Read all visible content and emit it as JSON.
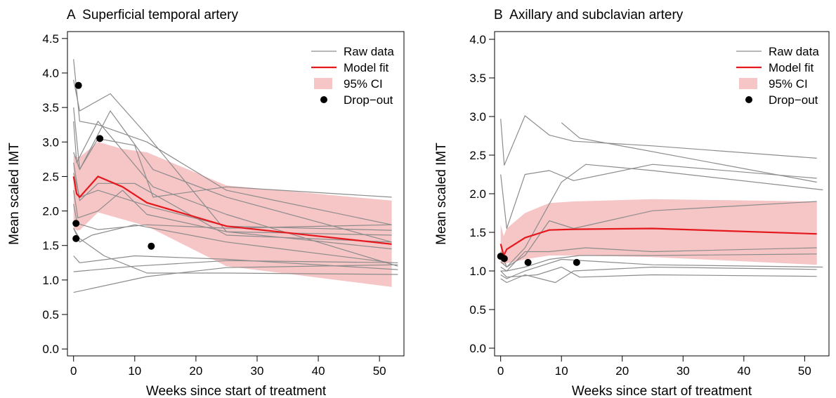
{
  "chart_data": [
    {
      "type": "line",
      "title": "A  Superficial temporal artery",
      "xlabel": "Weeks since start of treatment",
      "ylabel": "Mean scaled IMT",
      "xlim": [
        -1,
        54
      ],
      "ylim": [
        -0.1,
        4.6
      ],
      "xticks": [
        0,
        10,
        20,
        30,
        40,
        50
      ],
      "yticks": [
        0.0,
        0.5,
        1.0,
        1.5,
        2.0,
        2.5,
        3.0,
        3.5,
        4.0,
        4.5
      ],
      "legend": {
        "position": "top-right",
        "entries": [
          "Raw data",
          "Model fit",
          "95% CI",
          "Drop−out"
        ]
      },
      "raw_data": [
        [
          [
            0,
            4.2
          ],
          [
            1,
            3.3
          ],
          [
            4,
            3.25
          ],
          [
            12,
            3.0
          ],
          [
            25,
            2.3
          ],
          [
            52,
            1.8
          ]
        ],
        [
          [
            0,
            3.9
          ],
          [
            1,
            3.45
          ],
          [
            6,
            3.7
          ],
          [
            12,
            3.1
          ],
          [
            25,
            1.7
          ],
          [
            52,
            1.65
          ]
        ],
        [
          [
            0,
            3.5
          ],
          [
            1,
            2.6
          ],
          [
            6,
            3.45
          ],
          [
            13,
            2.6
          ],
          [
            25,
            2.2
          ],
          [
            52,
            1.55
          ]
        ],
        [
          [
            0,
            3.3
          ],
          [
            0.5,
            2.7
          ],
          [
            4,
            3.3
          ],
          [
            13,
            2.35
          ],
          [
            25,
            1.95
          ],
          [
            53,
            1.2
          ]
        ],
        [
          [
            0,
            2.85
          ],
          [
            1,
            2.6
          ],
          [
            4,
            3.05
          ],
          [
            10,
            2.95
          ],
          [
            13,
            2.2
          ],
          [
            25,
            2.35
          ],
          [
            52,
            2.2
          ]
        ],
        [
          [
            0,
            2.55
          ],
          [
            1,
            2.2
          ],
          [
            4,
            2.3
          ],
          [
            13,
            2.05
          ],
          [
            25,
            1.78
          ],
          [
            52,
            1.72
          ]
        ],
        [
          [
            0,
            2.7
          ],
          [
            1,
            2.15
          ],
          [
            4,
            2.4
          ],
          [
            10,
            2.4
          ],
          [
            25,
            1.65
          ],
          [
            52,
            1.55
          ]
        ],
        [
          [
            0,
            2.3
          ],
          [
            0.7,
            1.9
          ],
          [
            4,
            2.0
          ],
          [
            8,
            2.3
          ],
          [
            12,
            1.95
          ],
          [
            25,
            1.7
          ],
          [
            52,
            1.45
          ]
        ],
        [
          [
            0,
            2.1
          ],
          [
            0.6,
            1.82
          ],
          [
            4,
            1.73
          ],
          [
            12,
            1.8
          ],
          [
            25,
            1.75
          ],
          [
            52,
            1.8
          ]
        ],
        [
          [
            0,
            1.75
          ],
          [
            1,
            1.55
          ],
          [
            3,
            1.65
          ],
          [
            10,
            1.8
          ],
          [
            25,
            1.55
          ],
          [
            52,
            1.25
          ]
        ],
        [
          [
            0,
            1.75
          ],
          [
            1,
            1.6
          ],
          [
            5,
            1.35
          ],
          [
            12,
            1.1
          ],
          [
            25,
            1.1
          ],
          [
            53,
            1.08
          ]
        ],
        [
          [
            0,
            1.35
          ],
          [
            1,
            1.25
          ],
          [
            10,
            1.35
          ],
          [
            25,
            1.3
          ],
          [
            53,
            1.15
          ]
        ],
        [
          [
            0,
            1.12
          ],
          [
            10,
            1.2
          ],
          [
            25,
            1.28
          ],
          [
            53,
            1.25
          ]
        ],
        [
          [
            0,
            0.82
          ],
          [
            12,
            1.05
          ],
          [
            25,
            1.18
          ],
          [
            53,
            1.22
          ]
        ]
      ],
      "model_fit": {
        "x": [
          0,
          0.5,
          1,
          4,
          8,
          12,
          25,
          52
        ],
        "y": [
          2.5,
          2.25,
          2.2,
          2.5,
          2.35,
          2.12,
          1.78,
          1.52
        ]
      },
      "ci": {
        "x": [
          0,
          0.5,
          1,
          4,
          8,
          12,
          25,
          52
        ],
        "lower": [
          1.75,
          1.72,
          1.72,
          1.98,
          1.88,
          1.78,
          1.2,
          0.9
        ],
        "upper": [
          2.8,
          2.78,
          2.78,
          3.0,
          2.9,
          2.85,
          2.37,
          2.15
        ]
      },
      "dropouts": [
        {
          "x": 0.8,
          "y": 3.82
        },
        {
          "x": 4.3,
          "y": 3.05
        },
        {
          "x": 0.4,
          "y": 1.82
        },
        {
          "x": 0.4,
          "y": 1.6
        },
        {
          "x": 12.7,
          "y": 1.49
        }
      ]
    },
    {
      "type": "line",
      "title": "B  Axillary and subclavian artery",
      "xlabel": "Weeks since start of treatment",
      "ylabel": "Mean scaled IMT",
      "xlim": [
        -1,
        54
      ],
      "ylim": [
        -0.1,
        4.1
      ],
      "xticks": [
        0,
        10,
        20,
        30,
        40,
        50
      ],
      "yticks": [
        0.0,
        0.5,
        1.0,
        1.5,
        2.0,
        2.5,
        3.0,
        3.5,
        4.0
      ],
      "legend": {
        "position": "top-right",
        "entries": [
          "Raw data",
          "Model fit",
          "95% CI",
          "Drop−out"
        ]
      },
      "raw_data": [
        [
          [
            0,
            2.97
          ],
          [
            0.6,
            2.37
          ],
          [
            4,
            3.01
          ],
          [
            8,
            2.76
          ],
          [
            12,
            2.68
          ],
          [
            25,
            2.62
          ],
          [
            52,
            2.46
          ]
        ],
        [
          [
            10,
            2.92
          ],
          [
            13,
            2.72
          ],
          [
            52,
            2.15
          ]
        ],
        [
          [
            0,
            2.25
          ],
          [
            1,
            1.55
          ],
          [
            4,
            2.25
          ],
          [
            8,
            2.3
          ],
          [
            12,
            2.17
          ],
          [
            25,
            2.38
          ],
          [
            52,
            2.2
          ]
        ],
        [
          [
            0,
            1.25
          ],
          [
            1,
            1.05
          ],
          [
            4,
            1.3
          ],
          [
            10,
            2.15
          ],
          [
            14,
            2.38
          ],
          [
            25,
            2.3
          ],
          [
            53,
            2.05
          ]
        ],
        [
          [
            0,
            1.12
          ],
          [
            1,
            1.05
          ],
          [
            4,
            1.2
          ],
          [
            8,
            1.65
          ],
          [
            12,
            1.55
          ],
          [
            25,
            1.78
          ],
          [
            52,
            1.9
          ]
        ],
        [
          [
            0,
            1.05
          ],
          [
            1,
            1.0
          ],
          [
            4,
            1.25
          ],
          [
            8,
            1.25
          ],
          [
            14,
            1.3
          ],
          [
            25,
            1.25
          ],
          [
            52,
            1.3
          ]
        ],
        [
          [
            0,
            1.0
          ],
          [
            1,
            1.0
          ],
          [
            4,
            1.05
          ],
          [
            8,
            1.15
          ],
          [
            13,
            1.2
          ],
          [
            25,
            1.2
          ],
          [
            52,
            1.22
          ]
        ],
        [
          [
            0,
            0.95
          ],
          [
            1,
            0.9
          ],
          [
            4,
            1.0
          ],
          [
            10,
            1.15
          ],
          [
            25,
            1.08
          ],
          [
            53,
            1.05
          ]
        ],
        [
          [
            0,
            0.9
          ],
          [
            1,
            0.85
          ],
          [
            4,
            0.95
          ],
          [
            9,
            0.85
          ],
          [
            12,
            1.0
          ],
          [
            25,
            1.05
          ],
          [
            52,
            1.02
          ]
        ],
        [
          [
            0,
            1.0
          ],
          [
            1,
            0.92
          ],
          [
            6,
            0.95
          ],
          [
            10,
            1.05
          ],
          [
            13,
            0.92
          ],
          [
            25,
            0.95
          ],
          [
            52,
            0.93
          ]
        ]
      ],
      "model_fit": {
        "x": [
          0,
          0.5,
          1,
          4,
          8,
          12,
          25,
          52
        ],
        "y": [
          1.35,
          1.2,
          1.28,
          1.43,
          1.53,
          1.54,
          1.55,
          1.48
        ]
      },
      "ci": {
        "x": [
          0,
          0.5,
          1,
          4,
          8,
          12,
          25,
          52
        ],
        "lower": [
          1.1,
          1.08,
          1.1,
          1.15,
          1.2,
          1.2,
          1.18,
          1.08
        ],
        "upper": [
          1.6,
          1.45,
          1.55,
          1.75,
          1.88,
          1.9,
          1.93,
          1.9
        ]
      },
      "dropouts": [
        {
          "x": 0,
          "y": 1.19
        },
        {
          "x": 0.6,
          "y": 1.16
        },
        {
          "x": 4.5,
          "y": 1.11
        },
        {
          "x": 12.5,
          "y": 1.11
        }
      ]
    }
  ],
  "colors": {
    "raw": "#8c8c8c",
    "fit": "#e4181d",
    "ci": "#f6c5c6",
    "dropout": "#000000",
    "axis": "#000000"
  }
}
